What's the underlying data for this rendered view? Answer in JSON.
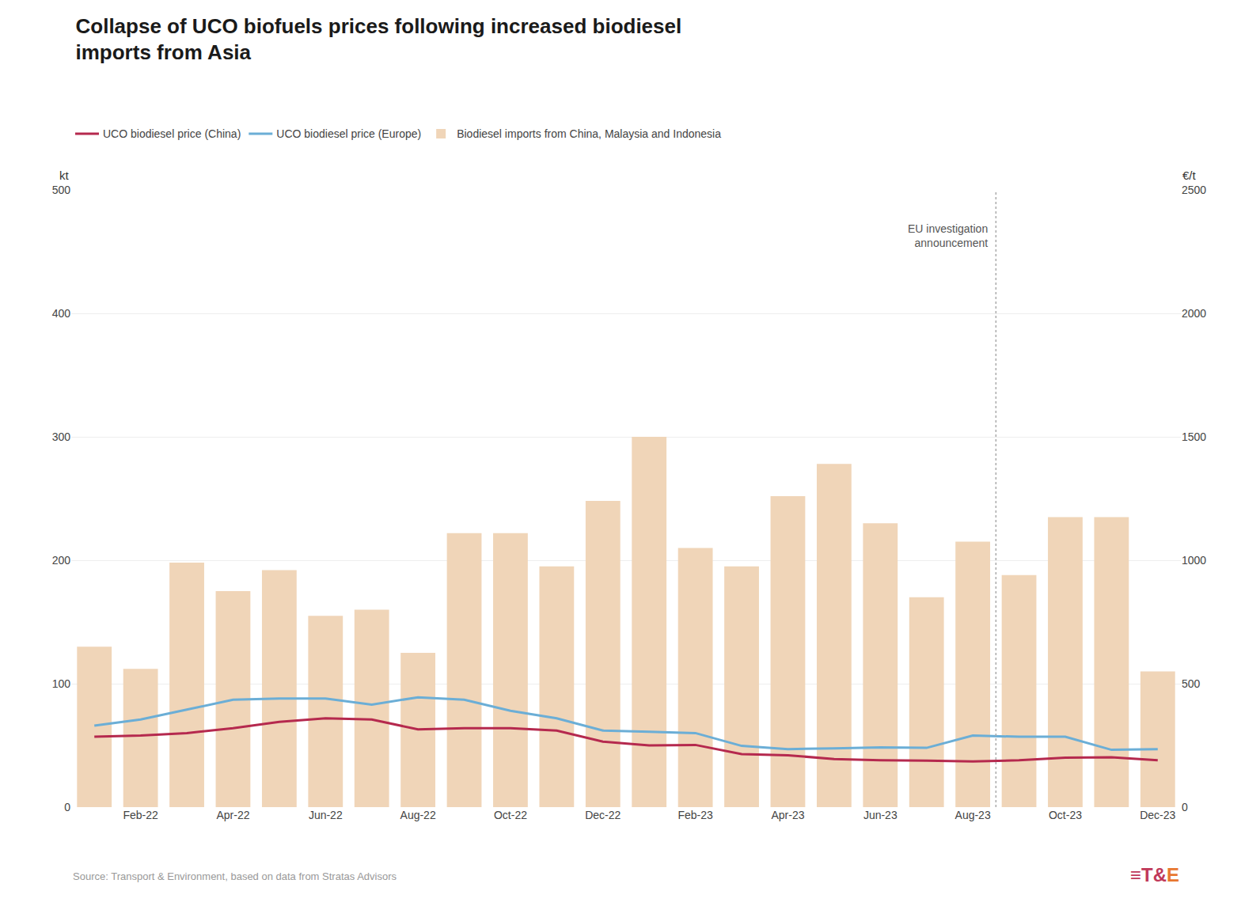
{
  "chart_data": {
    "type": "bar",
    "title": "Collapse of UCO biofuels prices following increased biodiesel\nimports from Asia",
    "source": "Source: Transport & Environment, based on data from Stratas Advisors",
    "logo": [
      {
        "text": "≡",
        "color": "#c0395a"
      },
      {
        "text": "T&",
        "color": "#c0395a"
      },
      {
        "text": "E",
        "color": "#e87830"
      }
    ],
    "ylabel": "kt",
    "y2label": "€/t",
    "categories": [
      null,
      "Feb-22",
      null,
      "Apr-22",
      null,
      "Jun-22",
      null,
      "Aug-22",
      null,
      "Oct-22",
      null,
      "Dec-22",
      null,
      "Feb-23",
      null,
      "Apr-23",
      null,
      "Jun-23",
      null,
      "Aug-23",
      null,
      "Oct-23",
      null,
      "Dec-23"
    ],
    "series": [
      {
        "name": "UCO biodiesel price (China)",
        "type": "line",
        "axis": "y2",
        "color": "#b5294e",
        "values": [
          285,
          290,
          300,
          320,
          345,
          360,
          355,
          315,
          320,
          320,
          310,
          265,
          250,
          252,
          215,
          210,
          195,
          190,
          188,
          185,
          190,
          200,
          202,
          190
        ]
      },
      {
        "name": "UCO biodiesel price (Europe)",
        "type": "line",
        "axis": "y2",
        "color": "#6baed6",
        "values": [
          330,
          355,
          395,
          435,
          440,
          440,
          415,
          445,
          435,
          390,
          360,
          310,
          305,
          300,
          248,
          235,
          238,
          242,
          240,
          290,
          285,
          285,
          232,
          235
        ]
      },
      {
        "name": "Biodiesel imports from China, Malaysia and Indonesia",
        "type": "bar",
        "color": "#f0d5b8",
        "values": [
          130,
          112,
          198,
          175,
          192,
          155,
          160,
          125,
          222,
          222,
          195,
          248,
          300,
          210,
          195,
          252,
          278,
          230,
          170,
          215,
          188,
          235,
          235,
          110
        ]
      }
    ],
    "ylim": [
      0,
      500
    ],
    "yticks": [
      0,
      100,
      200,
      300,
      400,
      500
    ],
    "y2lim": [
      0,
      2500
    ],
    "y2ticks": [
      0,
      500,
      1000,
      1500,
      2000,
      2500
    ],
    "annotations": [
      {
        "text": "EU investigation\nannouncement",
        "x": 19.5
      }
    ],
    "grid": true
  }
}
